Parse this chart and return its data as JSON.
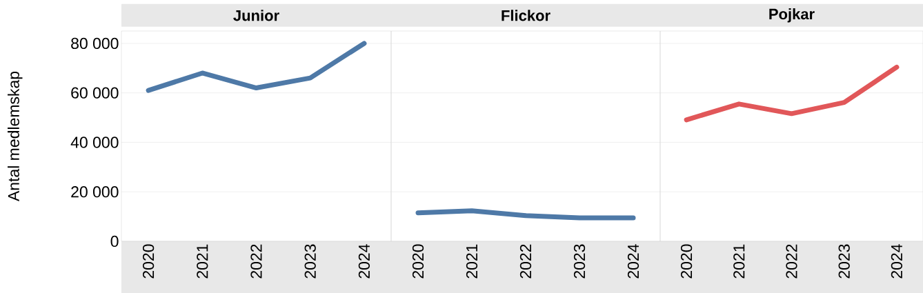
{
  "chart_data": [
    {
      "type": "line",
      "title": "Junior",
      "ylabel": "Antal medlemskap",
      "categories": [
        "2020",
        "2021",
        "2022",
        "2023",
        "2024"
      ],
      "series": [
        {
          "color": "#4e79a7",
          "values": [
            61000,
            68000,
            62000,
            66000,
            80000
          ]
        }
      ],
      "ylim": [
        0,
        85000
      ],
      "yticks": [
        {
          "value": 0,
          "label": "0"
        },
        {
          "value": 20000,
          "label": "20 000"
        },
        {
          "value": 40000,
          "label": "40 000"
        },
        {
          "value": 60000,
          "label": "60 000"
        },
        {
          "value": 80000,
          "label": "80 000"
        }
      ],
      "grid": "y"
    },
    {
      "type": "line",
      "title": "Flickor",
      "categories": [
        "2020",
        "2021",
        "2022",
        "2023",
        "2024"
      ],
      "series": [
        {
          "color": "#4e79a7",
          "values": [
            11500,
            12300,
            10400,
            9500,
            9500
          ]
        }
      ],
      "ylim": [
        0,
        85000
      ],
      "yticks": [
        {
          "value": 0,
          "label": null
        },
        {
          "value": 20000,
          "label": null
        },
        {
          "value": 40000,
          "label": null
        },
        {
          "value": 60000,
          "label": null
        },
        {
          "value": 80000,
          "label": null
        }
      ],
      "grid": "y",
      "tick_labels": "x"
    },
    {
      "type": "line",
      "title": "Pojkar",
      "categories": [
        "2020",
        "2021",
        "2022",
        "2023",
        "2024"
      ],
      "series": [
        {
          "color": "#e15759",
          "values": [
            49100,
            55500,
            51600,
            56100,
            70400
          ]
        }
      ],
      "ylim": [
        0,
        85000
      ],
      "yticks": [
        {
          "value": 0,
          "label": null
        },
        {
          "value": 20000,
          "label": null
        },
        {
          "value": 40000,
          "label": null
        },
        {
          "value": 60000,
          "label": null
        },
        {
          "value": 80000,
          "label": null
        }
      ],
      "grid": "y",
      "tick_labels": "x"
    }
  ]
}
